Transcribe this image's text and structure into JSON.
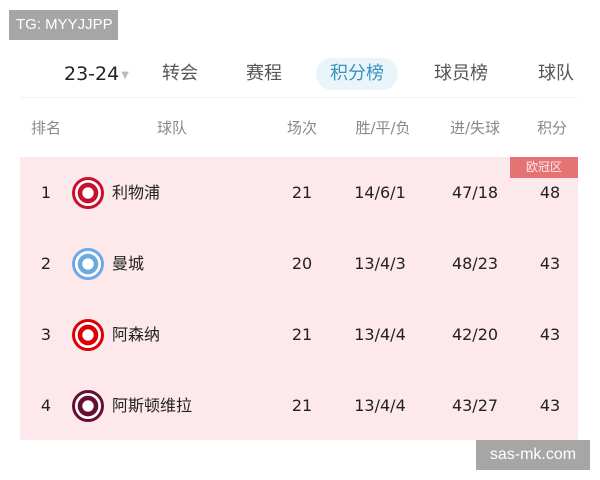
{
  "watermarks": {
    "top": "TG: MYYJJPP",
    "bottom": "sas-mk.com"
  },
  "season": {
    "value": "23-24"
  },
  "tabs": [
    {
      "label": "转会"
    },
    {
      "label": "赛程"
    },
    {
      "label": "积分榜",
      "active": true
    },
    {
      "label": "球员榜"
    },
    {
      "label": "球队"
    }
  ],
  "table": {
    "headers": {
      "rank": "排名",
      "team": "球队",
      "played": "场次",
      "wdl": "胜/平/负",
      "goals": "进/失球",
      "points": "积分"
    },
    "zone_badge": "欧冠区",
    "zone_color": "#e57373",
    "rows": [
      {
        "rank": "1",
        "team": "利物浦",
        "played": "21",
        "wdl": "14/6/1",
        "goals": "47/18",
        "points": "48",
        "logo": "liverpool-crest",
        "logo_color": "#c8102e"
      },
      {
        "rank": "2",
        "team": "曼城",
        "played": "20",
        "wdl": "13/4/3",
        "goals": "48/23",
        "points": "43",
        "logo": "man-city-crest",
        "logo_color": "#6cabdd"
      },
      {
        "rank": "3",
        "team": "阿森纳",
        "played": "21",
        "wdl": "13/4/4",
        "goals": "42/20",
        "points": "43",
        "logo": "arsenal-crest",
        "logo_color": "#db0007"
      },
      {
        "rank": "4",
        "team": "阿斯顿维拉",
        "played": "21",
        "wdl": "13/4/4",
        "goals": "43/27",
        "points": "43",
        "logo": "aston-villa-crest",
        "logo_color": "#670e36"
      }
    ]
  }
}
